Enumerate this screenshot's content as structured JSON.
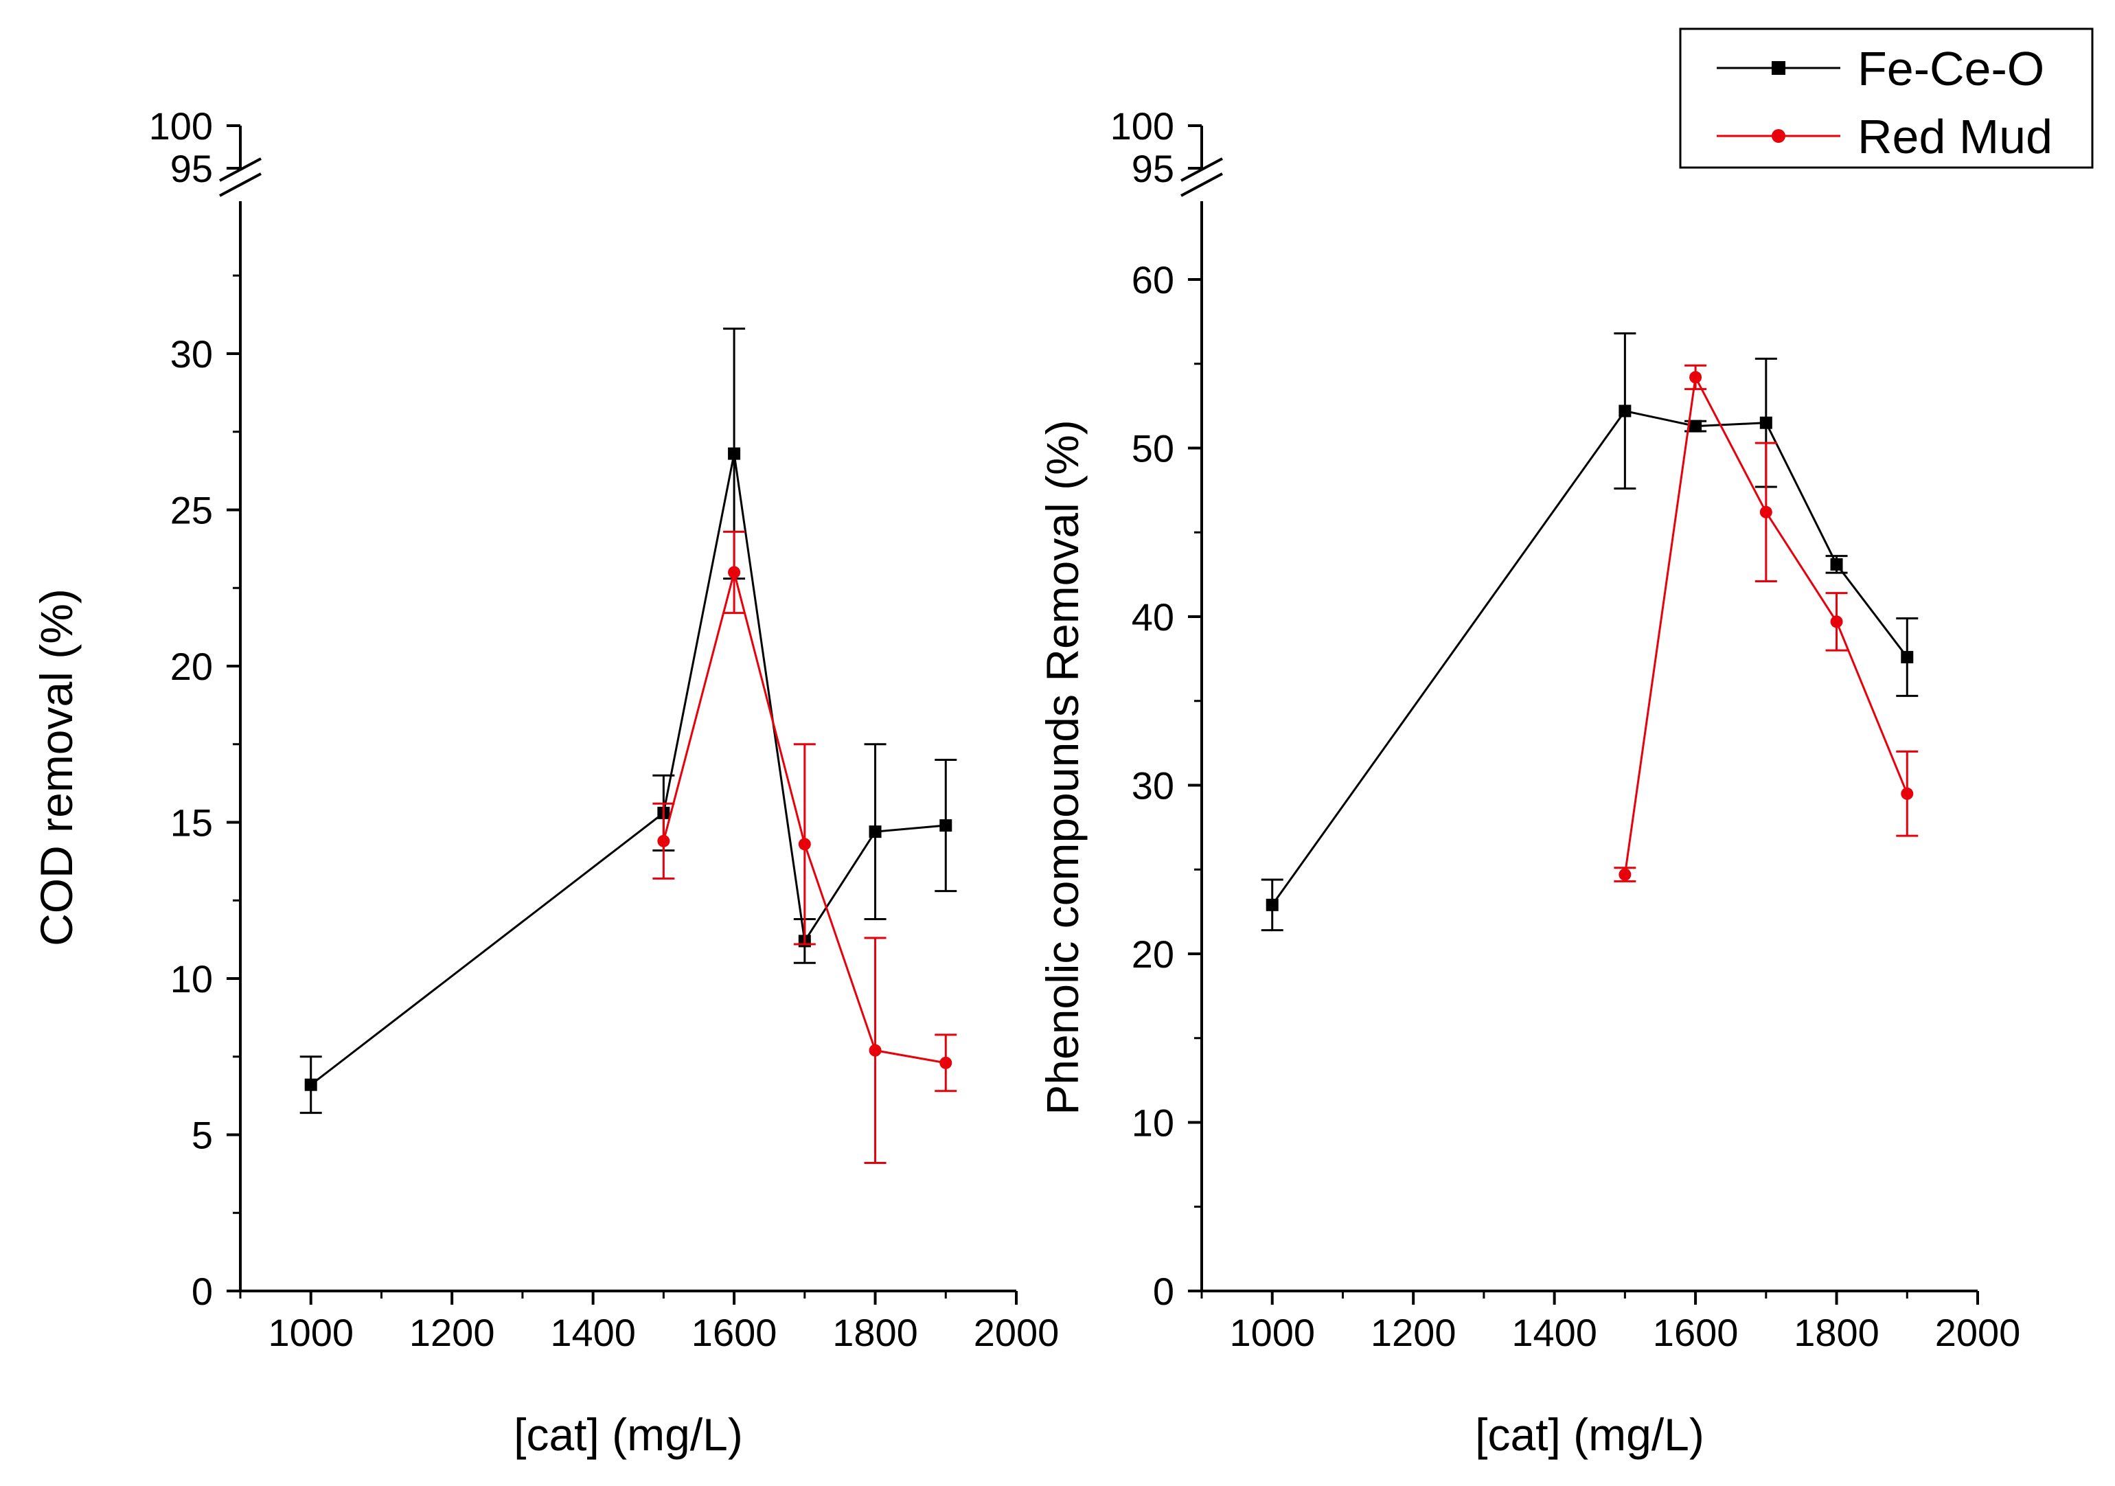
{
  "colors": {
    "fe_ce_o": "#000000",
    "red_mud": "#e8000b"
  },
  "legend": {
    "placement": "top-right",
    "entries": [
      {
        "name": "Fe-Ce-O",
        "color": "#000000",
        "marker": "square"
      },
      {
        "name": "Red Mud",
        "color": "#e8000b",
        "marker": "circle"
      }
    ]
  },
  "chart_data": [
    {
      "type": "line",
      "title": "",
      "xlabel": "[cat] (mg/L)",
      "ylabel": "COD removal (%)",
      "xlim": [
        900,
        2000
      ],
      "ylim": [
        0,
        100
      ],
      "axis_break": [
        35,
        95
      ],
      "x_ticks": [
        1000,
        1200,
        1400,
        1600,
        1800,
        2000
      ],
      "x_tick_labels": [
        "1000",
        "1200",
        "1400",
        "1600",
        "1800",
        "2000"
      ],
      "y_ticks": [
        0,
        5,
        10,
        15,
        20,
        25,
        30,
        95,
        100
      ],
      "y_tick_labels": [
        "0",
        "5",
        "10",
        "15",
        "20",
        "25",
        "30",
        "95",
        "100"
      ],
      "grid": false,
      "series": [
        {
          "name": "Fe-Ce-O",
          "color": "#000000",
          "marker": "square",
          "x": [
            1000,
            1500,
            1600,
            1700,
            1800,
            1900
          ],
          "y": [
            6.6,
            15.3,
            26.8,
            11.2,
            14.7,
            14.9
          ],
          "err": [
            0.9,
            1.2,
            4.0,
            0.7,
            2.8,
            2.1
          ]
        },
        {
          "name": "Red Mud",
          "color": "#e8000b",
          "marker": "circle",
          "x": [
            1500,
            1600,
            1700,
            1800,
            1900
          ],
          "y": [
            14.4,
            23.0,
            14.3,
            7.7,
            7.3
          ],
          "err": [
            1.2,
            1.3,
            3.2,
            3.6,
            0.9
          ]
        }
      ]
    },
    {
      "type": "line",
      "title": "",
      "xlabel": "[cat] (mg/L)",
      "ylabel": "Phenolic compounds Removal (%)",
      "xlim": [
        900,
        2000
      ],
      "ylim": [
        0,
        100
      ],
      "axis_break": [
        65,
        95
      ],
      "x_ticks": [
        1000,
        1200,
        1400,
        1600,
        1800,
        2000
      ],
      "x_tick_labels": [
        "1000",
        "1200",
        "1400",
        "1600",
        "1800",
        "2000"
      ],
      "y_ticks": [
        0,
        10,
        20,
        30,
        40,
        50,
        60,
        95,
        100
      ],
      "y_tick_labels": [
        "0",
        "10",
        "20",
        "30",
        "40",
        "50",
        "60",
        "95",
        "100"
      ],
      "grid": false,
      "series": [
        {
          "name": "Fe-Ce-O",
          "color": "#000000",
          "marker": "square",
          "x": [
            1000,
            1500,
            1600,
            1700,
            1800,
            1900
          ],
          "y": [
            22.9,
            52.2,
            51.3,
            51.5,
            43.1,
            37.6
          ],
          "err": [
            1.5,
            4.6,
            0.3,
            3.8,
            0.5,
            2.3
          ]
        },
        {
          "name": "Red Mud",
          "color": "#e8000b",
          "marker": "circle",
          "x": [
            1500,
            1600,
            1700,
            1800,
            1900
          ],
          "y": [
            24.7,
            54.2,
            46.2,
            39.7,
            29.5
          ],
          "err": [
            0.4,
            0.7,
            4.1,
            1.7,
            2.5
          ]
        }
      ]
    }
  ]
}
